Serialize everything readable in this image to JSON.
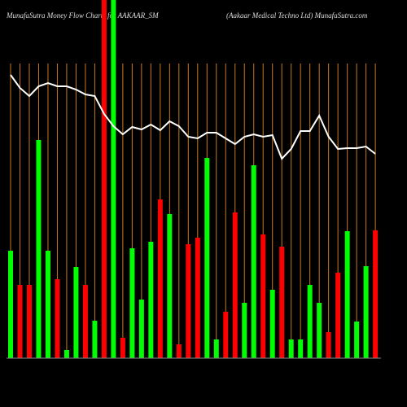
{
  "chart_data": {
    "type": "bar",
    "title": "MunafaSutra  Money Flow  Charts for AAKAAR_SM",
    "subtitle": "(Aakaar Medical Techno  Ltd) MunafaSutra.com",
    "categories": [
      null,
      null,
      null,
      null,
      null,
      null,
      null,
      null,
      null,
      null,
      null,
      null,
      null,
      null,
      null,
      null,
      null,
      null,
      null,
      null,
      null,
      null,
      null,
      null,
      null,
      null,
      null,
      null,
      null,
      null,
      null,
      null,
      null,
      null,
      null,
      null,
      null,
      null,
      null,
      null
    ],
    "values": [
      132,
      90,
      90,
      268,
      132,
      97,
      10,
      112,
      90,
      46,
      440,
      440,
      25,
      135,
      72,
      143,
      195,
      177,
      17,
      140,
      148,
      246,
      23,
      57,
      179,
      68,
      237,
      152,
      84,
      137,
      23,
      23,
      90,
      68,
      32,
      105,
      156,
      45,
      113,
      157
    ],
    "colors": [
      "#00ff00",
      "#ff0000",
      "#ff0000",
      "#00ff00",
      "#00ff00",
      "#ff0000",
      "#00ff00",
      "#00ff00",
      "#ff0000",
      "#00ff00",
      "#ff0000",
      "#00ff00",
      "#ff0000",
      "#00ff00",
      "#00ff00",
      "#00ff00",
      "#ff0000",
      "#00ff00",
      "#ff0000",
      "#ff0000",
      "#ff0000",
      "#00ff00",
      "#00ff00",
      "#ff0000",
      "#ff0000",
      "#00ff00",
      "#00ff00",
      "#ff0000",
      "#00ff00",
      "#ff0000",
      "#00ff00",
      "#00ff00",
      "#00ff00",
      "#00ff00",
      "#ff0000",
      "#ff0000",
      "#00ff00",
      "#00ff00",
      "#00ff00",
      "#ff0000"
    ],
    "line_values": [
      348,
      332,
      322,
      334,
      338,
      334,
      334,
      330,
      324,
      322,
      300,
      285,
      275,
      284,
      281,
      287,
      280,
      291,
      285,
      272,
      270,
      277,
      277,
      270,
      263,
      272,
      275,
      272,
      274,
      245,
      257,
      279,
      279,
      298,
      272,
      257,
      258,
      258,
      260,
      251
    ],
    "line_color": "#ffffff",
    "ylim": [
      0,
      440
    ]
  }
}
